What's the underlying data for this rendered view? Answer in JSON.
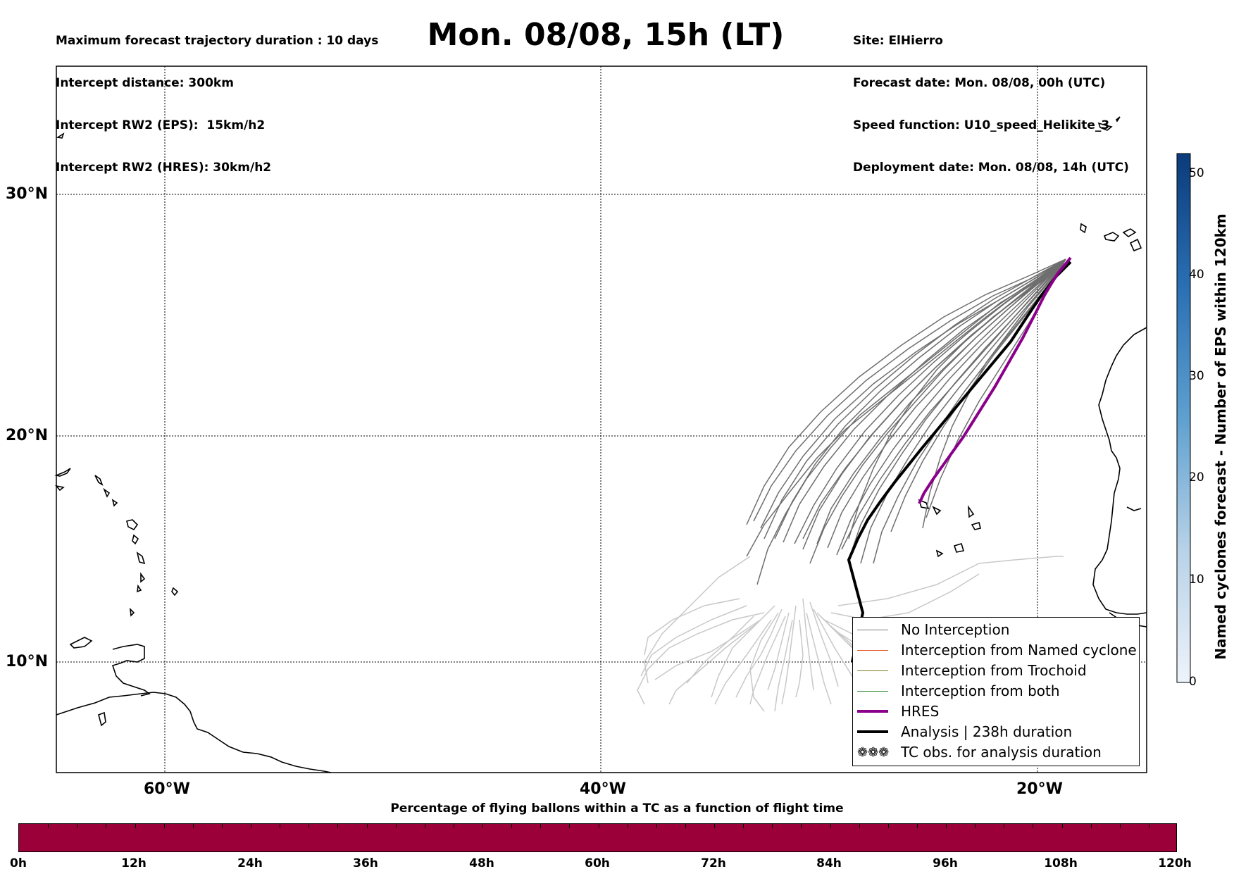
{
  "header": {
    "title": "Mon. 08/08, 15h (LT)",
    "left_info": [
      "Maximum forecast trajectory duration : 10 days",
      "Intercept distance: 300km",
      "Intercept RW2 (EPS):  15km/h2",
      "Intercept RW2 (HRES): 30km/h2"
    ],
    "right_info": [
      "Site: ElHierro",
      "Forecast date: Mon. 08/08, 00h (UTC)",
      "Speed function: U10_speed_Helikite_3",
      "Deployment date: Mon. 08/08, 14h (UTC)"
    ]
  },
  "map": {
    "lat_labels": [
      "30°N",
      "20°N",
      "10°N"
    ],
    "lon_labels": [
      "60°W",
      "40°W",
      "20°W"
    ]
  },
  "legend": {
    "items": [
      {
        "label": "No Interception",
        "color": "#7a7a7a"
      },
      {
        "label": "Interception from Named cyclone",
        "color": "#e8532a"
      },
      {
        "label": "Interception from Trochoid",
        "color": "#7a7a20"
      },
      {
        "label": "Interception from both",
        "color": "#2a8a2a"
      },
      {
        "label": "HRES",
        "color": "#8b008b"
      },
      {
        "label": "Analysis | 238h duration",
        "color": "#000000"
      },
      {
        "label": "TC obs. for analysis duration",
        "color": "#000000"
      }
    ]
  },
  "right_colorbar": {
    "label": "Named cyclones forecast - Number of EPS within 120km",
    "ticks": [
      "50",
      "40",
      "30",
      "20",
      "10",
      "0"
    ]
  },
  "bottom_colorbar": {
    "title": "Percentage of flying ballons within a TC as a function of flight time",
    "ticks": [
      "0h",
      "12h",
      "24h",
      "36h",
      "48h",
      "60h",
      "72h",
      "84h",
      "96h",
      "108h",
      "120h"
    ],
    "color": "#9b0038"
  }
}
